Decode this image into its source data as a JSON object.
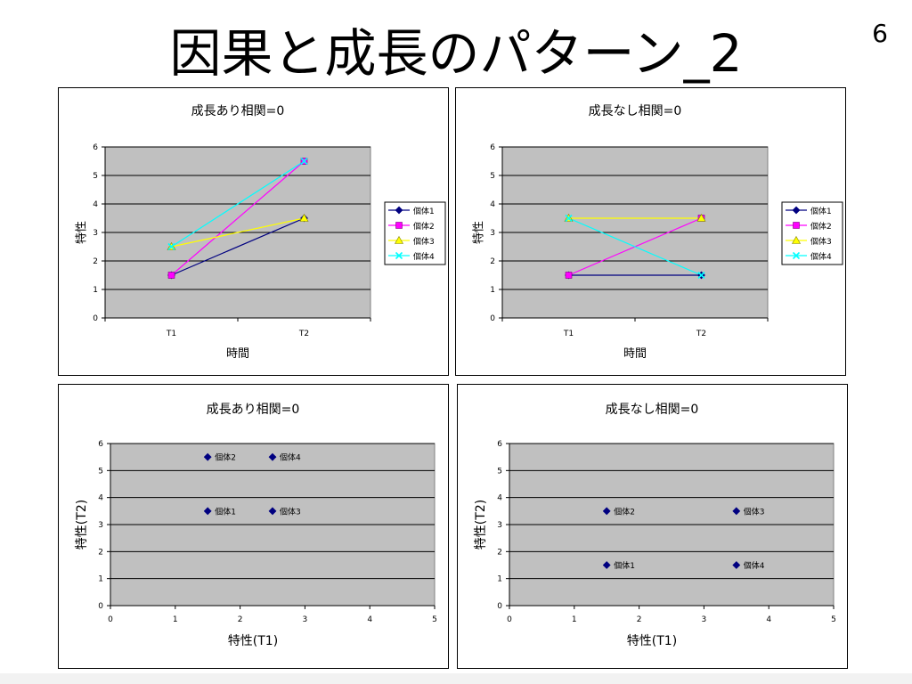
{
  "slide": {
    "title": "因果と成長のパターン_2",
    "page_number": "6"
  },
  "chart_data": [
    {
      "type": "line",
      "title": "成長あり相関=0",
      "xlabel": "時間",
      "ylabel": "特性",
      "categories": [
        "T1",
        "T2"
      ],
      "ylim": [
        0,
        6
      ],
      "yticks": [
        0,
        1,
        2,
        3,
        4,
        5,
        6
      ],
      "grid": true,
      "legend": "right",
      "series": [
        {
          "name": "個体1",
          "values": [
            1.5,
            3.5
          ],
          "color": "#000080",
          "marker": "diamond"
        },
        {
          "name": "個体2",
          "values": [
            1.5,
            5.5
          ],
          "color": "#ff00ff",
          "marker": "square"
        },
        {
          "name": "個体3",
          "values": [
            2.5,
            3.5
          ],
          "color": "#ffff00",
          "marker": "triangle"
        },
        {
          "name": "個体4",
          "values": [
            2.5,
            5.5
          ],
          "color": "#00ffff",
          "marker": "x"
        }
      ]
    },
    {
      "type": "line",
      "title": "成長なし相関=0",
      "xlabel": "時間",
      "ylabel": "特性",
      "categories": [
        "T1",
        "T2"
      ],
      "ylim": [
        0,
        6
      ],
      "yticks": [
        0,
        1,
        2,
        3,
        4,
        5,
        6
      ],
      "grid": true,
      "legend": "right",
      "series": [
        {
          "name": "個体1",
          "values": [
            1.5,
            1.5
          ],
          "color": "#000080",
          "marker": "diamond"
        },
        {
          "name": "個体2",
          "values": [
            1.5,
            3.5
          ],
          "color": "#ff00ff",
          "marker": "square"
        },
        {
          "name": "個体3",
          "values": [
            3.5,
            3.5
          ],
          "color": "#ffff00",
          "marker": "triangle"
        },
        {
          "name": "個体4",
          "values": [
            3.5,
            1.5
          ],
          "color": "#00ffff",
          "marker": "x"
        }
      ]
    },
    {
      "type": "scatter",
      "title": "成長あり相関=0",
      "xlabel": "特性(T1)",
      "ylabel": "特性(T2)",
      "xlim": [
        0,
        5
      ],
      "ylim": [
        0,
        6
      ],
      "xticks": [
        0,
        1,
        2,
        3,
        4,
        5
      ],
      "yticks": [
        0,
        1,
        2,
        3,
        4,
        5,
        6
      ],
      "grid": true,
      "color": "#000080",
      "points": [
        {
          "label": "個体1",
          "x": 1.5,
          "y": 3.5
        },
        {
          "label": "個体2",
          "x": 1.5,
          "y": 5.5
        },
        {
          "label": "個体3",
          "x": 2.5,
          "y": 3.5
        },
        {
          "label": "個体4",
          "x": 2.5,
          "y": 5.5
        }
      ]
    },
    {
      "type": "scatter",
      "title": "成長なし相関=0",
      "xlabel": "特性(T1)",
      "ylabel": "特性(T2)",
      "xlim": [
        0,
        5
      ],
      "ylim": [
        0,
        6
      ],
      "xticks": [
        0,
        1,
        2,
        3,
        4,
        5
      ],
      "yticks": [
        0,
        1,
        2,
        3,
        4,
        5,
        6
      ],
      "grid": true,
      "color": "#000080",
      "points": [
        {
          "label": "個体1",
          "x": 1.5,
          "y": 1.5
        },
        {
          "label": "個体2",
          "x": 1.5,
          "y": 3.5
        },
        {
          "label": "個体3",
          "x": 3.5,
          "y": 3.5
        },
        {
          "label": "個体4",
          "x": 3.5,
          "y": 1.5
        }
      ]
    }
  ]
}
